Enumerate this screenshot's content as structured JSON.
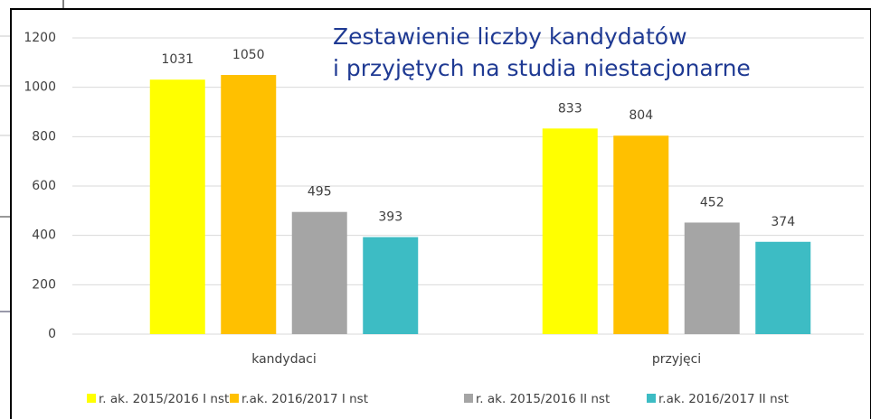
{
  "chart_data": {
    "type": "bar",
    "title": [
      "Zestawienie liczby kandydatów",
      "i przyjętych na studia niestacjonarne"
    ],
    "categories": [
      "kandydaci",
      "przyjęci"
    ],
    "series": [
      {
        "name": "r. ak. 2015/2016 I nst",
        "color": "#ffff00",
        "values": [
          1031,
          833
        ]
      },
      {
        "name": "r.ak. 2016/2017 I nst",
        "color": "#ffc000",
        "values": [
          1050,
          804
        ]
      },
      {
        "name": "r. ak. 2015/2016 II nst",
        "color": "#a5a5a5",
        "values": [
          495,
          452
        ]
      },
      {
        "name": "r.ak. 2016/2017 II nst",
        "color": "#3dbcc4",
        "values": [
          393,
          374
        ]
      }
    ],
    "ylim": [
      0,
      1200
    ],
    "yticks": [
      0,
      200,
      400,
      600,
      800,
      1000,
      1200
    ],
    "grid": true,
    "legend": "bottom"
  }
}
